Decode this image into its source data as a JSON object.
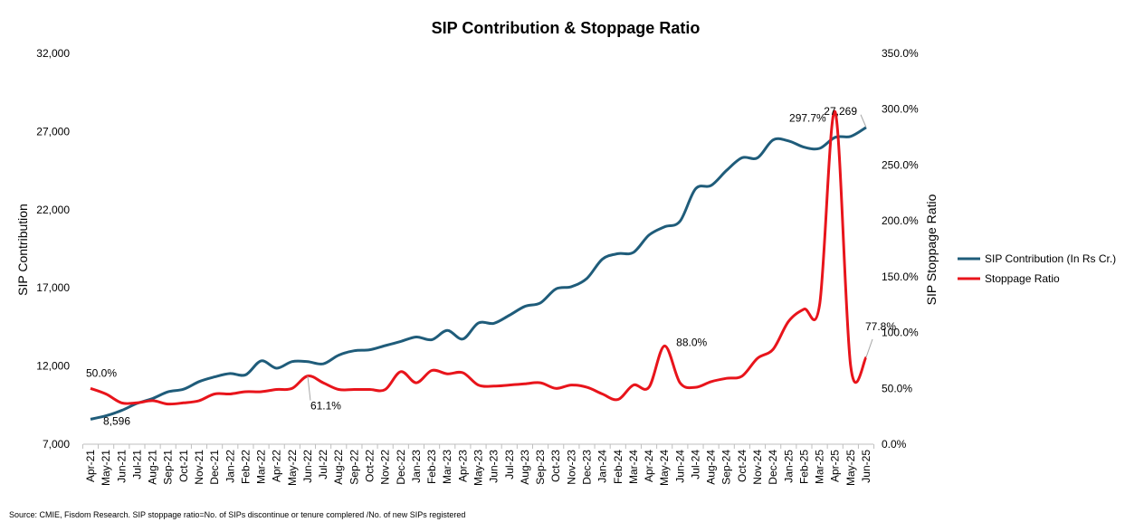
{
  "chart_data": {
    "type": "line",
    "title": "SIP Contribution & Stoppage Ratio",
    "ylabel": "SIP Contribution",
    "y2label": "SIP Stoppage Ratio",
    "ylim": [
      7000,
      32000
    ],
    "y2lim": [
      0,
      350
    ],
    "yticks": [
      "7,000",
      "12,000",
      "17,000",
      "22,000",
      "27,000",
      "32,000"
    ],
    "y2ticks": [
      "0.0%",
      "50.0%",
      "100.0%",
      "150.0%",
      "200.0%",
      "250.0%",
      "300.0%",
      "350.0%"
    ],
    "categories": [
      "Apr-21",
      "May-21",
      "Jun-21",
      "Jul-21",
      "Aug-21",
      "Sep-21",
      "Oct-21",
      "Nov-21",
      "Dec-21",
      "Jan-22",
      "Feb-22",
      "Mar-22",
      "Apr-22",
      "May-22",
      "Jun-22",
      "Jul-22",
      "Aug-22",
      "Sep-22",
      "Oct-22",
      "Nov-22",
      "Dec-22",
      "Jan-23",
      "Feb-23",
      "Mar-23",
      "Apr-23",
      "May-23",
      "Jun-23",
      "Jul-23",
      "Aug-23",
      "Sep-23",
      "Oct-23",
      "Nov-23",
      "Dec-23",
      "Jan-24",
      "Feb-24",
      "Mar-24",
      "Apr-24",
      "May-24",
      "Jun-24",
      "Jul-24",
      "Aug-24",
      "Sep-24",
      "Oct-24",
      "Nov-24",
      "Dec-24",
      "Jan-25",
      "Feb-25",
      "Mar-25",
      "Apr-25",
      "May-25",
      "Jun-25"
    ],
    "series": [
      {
        "name": "SIP Contribution (In Rs Cr.)",
        "axis": "left",
        "color": "#1f5c7a",
        "values": [
          8596,
          8819,
          9156,
          9609,
          9923,
          10351,
          10519,
          11005,
          11305,
          11517,
          11438,
          12328,
          11863,
          12286,
          12276,
          12140,
          12693,
          12976,
          13041,
          13307,
          13573,
          13856,
          13686,
          14276,
          13728,
          14749,
          14734,
          15245,
          15814,
          16042,
          16928,
          17073,
          17610,
          18838,
          19187,
          19271,
          20371,
          20904,
          21262,
          23332,
          23547,
          24509,
          25323,
          25320,
          26459,
          26400,
          25999,
          25926,
          26632,
          26688,
          27269
        ]
      },
      {
        "name": "Stoppage Ratio",
        "axis": "right",
        "color": "#e8141b",
        "values": [
          50.0,
          45.0,
          37.0,
          37.0,
          39.0,
          36.0,
          37.0,
          39.0,
          45.0,
          45.0,
          47.0,
          47.0,
          49.0,
          50.0,
          61.1,
          55.0,
          49.0,
          49.0,
          49.0,
          49.0,
          65.0,
          55.0,
          66.0,
          63.0,
          64.0,
          53.0,
          52.0,
          53.0,
          54.0,
          55.0,
          50.0,
          53.0,
          51.0,
          45.0,
          40.0,
          53.0,
          51.0,
          88.0,
          55.0,
          51.0,
          56.0,
          59.0,
          61.0,
          77.0,
          85.0,
          110.0,
          121.0,
          125.0,
          297.7,
          70.0,
          77.8
        ]
      }
    ],
    "annotations": [
      {
        "text": "50.0%",
        "series": 1,
        "index": 0
      },
      {
        "text": "8,596",
        "series": 0,
        "index": 0
      },
      {
        "text": "61.1%",
        "series": 1,
        "index": 14
      },
      {
        "text": "88.0%",
        "series": 1,
        "index": 37
      },
      {
        "text": "297.7%",
        "series": 1,
        "index": 48
      },
      {
        "text": "27,269",
        "series": 0,
        "index": 50
      },
      {
        "text": "77.8%",
        "series": 1,
        "index": 50
      }
    ],
    "legend": {
      "position": "right",
      "items": [
        "SIP Contribution (In Rs Cr.)",
        "Stoppage Ratio"
      ]
    },
    "grid": false
  },
  "footer": {
    "source": "Source: CMIE, Fisdom Research. SIP stoppage ratio=No. of SIPs discontinue or tenure complered /No. of new SIPs registered"
  }
}
